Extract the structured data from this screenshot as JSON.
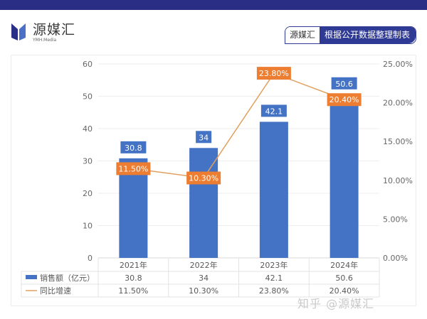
{
  "header": {
    "brand_cn": "源媒汇",
    "brand_en": "YMH.Media",
    "badge_left": "源媒汇",
    "badge_right": "根据公开数据整理制表"
  },
  "colors": {
    "top_band": "#2a2f85",
    "bar": "#4472c4",
    "line": "#ed7d31",
    "badge": "#2f3a94"
  },
  "table": {
    "years": [
      "2021年",
      "2022年",
      "2023年",
      "2024年"
    ],
    "rows": [
      {
        "legend": "销售额（亿元）",
        "values": [
          "30.8",
          "34",
          "42.1",
          "50.6"
        ]
      },
      {
        "legend": "同比增速",
        "values": [
          "11.50%",
          "10.30%",
          "23.80%",
          "20.40%"
        ]
      }
    ]
  },
  "watermark": "知乎 @源媒汇",
  "chart_data": {
    "type": "bar",
    "title": "",
    "categories": [
      "2021年",
      "2022年",
      "2023年",
      "2024年"
    ],
    "series": [
      {
        "name": "销售额（亿元）",
        "type": "bar",
        "axis": "left",
        "values": [
          30.8,
          34,
          42.1,
          50.6
        ],
        "labels": [
          "30.8",
          "34",
          "42.1",
          "50.6"
        ]
      },
      {
        "name": "同比增速",
        "type": "line",
        "axis": "right",
        "values": [
          11.5,
          10.3,
          23.8,
          20.4
        ],
        "labels": [
          "11.50%",
          "10.30%",
          "23.80%",
          "20.40%"
        ]
      }
    ],
    "left_axis": {
      "ylim": [
        0,
        60
      ],
      "ticks": [
        "0",
        "10",
        "20",
        "30",
        "40",
        "50",
        "60"
      ]
    },
    "right_axis": {
      "ylim": [
        0,
        25
      ],
      "ticks": [
        "0.00%",
        "5.00%",
        "10.00%",
        "15.00%",
        "20.00%",
        "25.00%"
      ]
    },
    "xlabel": "",
    "ylabel": "",
    "grid": true,
    "legend_position": "data-table-bottom"
  }
}
